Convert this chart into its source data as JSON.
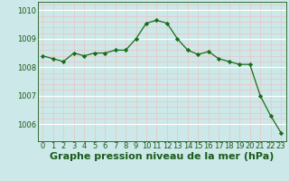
{
  "x": [
    0,
    1,
    2,
    3,
    4,
    5,
    6,
    7,
    8,
    9,
    10,
    11,
    12,
    13,
    14,
    15,
    16,
    17,
    18,
    19,
    20,
    21,
    22,
    23
  ],
  "y": [
    1008.4,
    1008.3,
    1008.2,
    1008.5,
    1008.4,
    1008.5,
    1008.5,
    1008.6,
    1008.6,
    1009.0,
    1009.55,
    1009.65,
    1009.55,
    1009.0,
    1008.6,
    1008.45,
    1008.55,
    1008.3,
    1008.2,
    1008.1,
    1008.1,
    1007.0,
    1006.3,
    1005.7
  ],
  "line_color": "#1a6b1a",
  "marker_color": "#1a6b1a",
  "bg_color": "#cce8e8",
  "grid_major_color": "#ffffff",
  "grid_minor_color": "#e8c8c8",
  "xlabel": "Graphe pression niveau de la mer (hPa)",
  "xlabel_color": "#1a5c1a",
  "ylabel_ticks": [
    1006,
    1007,
    1008,
    1009,
    1010
  ],
  "xlim": [
    -0.5,
    23.5
  ],
  "ylim": [
    1005.4,
    1010.3
  ],
  "xticks": [
    0,
    1,
    2,
    3,
    4,
    5,
    6,
    7,
    8,
    9,
    10,
    11,
    12,
    13,
    14,
    15,
    16,
    17,
    18,
    19,
    20,
    21,
    22,
    23
  ],
  "tick_color": "#1a5c1a",
  "tick_fontsize": 6,
  "xlabel_fontsize": 8,
  "minor_offsets": [
    0.2,
    0.4,
    0.6,
    0.8
  ]
}
